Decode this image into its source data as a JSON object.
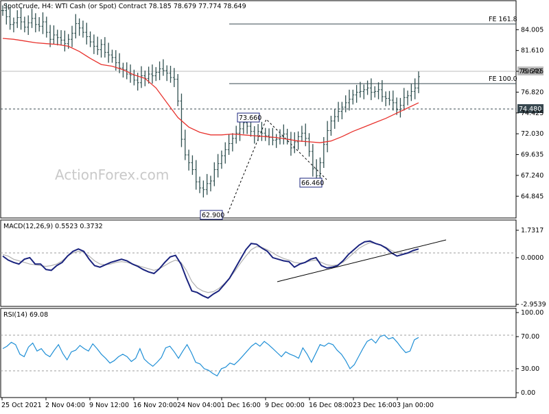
{
  "chart_data": [
    {
      "type": "bar",
      "panel": "price",
      "title": "SpotCrude, H4:  WTI Cash (or Spot) Contract  78.185 78.679 77.774 78.649",
      "watermark": "ActionForex.com",
      "ylim": [
        62.5,
        86.0
      ],
      "y_ticks": [
        "84.005",
        "81.610",
        "79.215",
        "76.820",
        "74.425",
        "72.030",
        "69.635",
        "67.240",
        "64.845"
      ],
      "x_ticks": [
        "25 Oct 2021",
        "2 Nov 04:00",
        "9 Nov 12:00",
        "16 Nov 20:00",
        "24 Nov 04:00",
        "1 Dec 16:00",
        "9 Dec 00:00",
        "16 Dec 08:00",
        "23 Dec 16:00",
        "3 Jan 00:00"
      ],
      "series": [
        {
          "values": [
            86.2,
            85.5,
            84.6,
            84.8,
            85.4,
            84.9,
            84.3,
            84.8,
            85.3,
            84.6,
            84.4,
            84.9,
            83.7,
            82.9,
            83.4,
            83.1,
            82.8,
            82.4,
            82.9,
            83.6,
            84.7,
            84.2,
            83.7,
            83.2,
            82.6,
            82.1,
            81.7,
            82.3,
            81.4,
            81.1,
            80.8,
            80.2,
            79.6,
            79.4,
            78.9,
            78.8,
            78.2,
            77.9,
            78.7,
            78.4,
            78.9,
            78.7,
            79.1,
            79.5,
            79.3,
            79.0,
            78.5,
            78.3,
            75.8,
            71.4,
            69.6,
            68.7,
            67.9,
            66.5,
            65.8,
            65.6,
            66.3,
            66.6,
            67.9,
            68.6,
            69.5,
            70.2,
            70.9,
            71.5,
            72.1,
            72.6,
            73.3,
            72.9,
            72.3,
            71.8,
            72.3,
            72.1,
            71.8,
            71.6,
            71.3,
            71.4,
            71.7,
            72.0,
            71.4,
            70.4,
            71.1,
            71.7,
            72.1,
            71.5,
            70.0,
            68.0,
            67.2,
            68.7,
            70.8,
            72.4,
            73.5,
            74.0,
            74.6,
            75.1,
            75.6,
            76.0,
            76.5,
            76.8,
            76.9,
            77.1,
            77.3,
            76.8,
            76.9,
            77.1,
            76.3,
            76.1,
            75.9,
            75.6,
            74.8,
            75.3,
            76.2,
            76.4,
            76.9,
            77.3,
            78.6
          ]
        },
        {
          "name": "MA",
          "values": [
            83.0,
            82.9,
            82.7,
            82.5,
            82.4,
            82.3,
            82.1,
            81.5,
            80.7,
            80.0,
            79.8,
            79.4,
            78.8,
            78.4,
            77.3,
            75.6,
            73.9,
            72.8,
            72.2,
            71.9,
            71.9,
            72.0,
            71.9,
            71.8,
            71.7,
            71.6,
            71.4,
            71.2,
            71.1,
            71.0,
            71.2,
            71.7,
            72.3,
            72.8,
            73.3,
            73.8,
            74.4,
            75.0,
            75.6
          ]
        }
      ],
      "annotations": {
        "levels": [
          {
            "label": "FE 161.8",
            "value": 84.1
          },
          {
            "label": "FE 100.0",
            "value": 77.2
          },
          {
            "label": "74.480",
            "value": 74.48
          },
          {
            "label": "78.649",
            "value": 78.649
          }
        ],
        "points": [
          {
            "label": "62.900",
            "value": 62.9
          },
          {
            "label": "73.660",
            "value": 73.66
          },
          {
            "label": "66.460",
            "value": 66.46
          }
        ]
      },
      "colors": {
        "candles": "#2f4f4f",
        "ma": "#e8322d",
        "level_lines": "#37474f",
        "current_price": "#9e9e9e"
      }
    },
    {
      "type": "line",
      "panel": "macd",
      "title": "MACD(12,26,9) 0.5523 0.3732",
      "ylim": [
        -2.95,
        1.73
      ],
      "y_ticks": [
        "1.7317",
        "0.0000",
        "-2.9539"
      ],
      "series": [
        {
          "values": [
            0.1,
            -0.15,
            -0.3,
            -0.4,
            -0.1,
            0.0,
            -0.4,
            -0.4,
            -0.75,
            -0.8,
            -0.5,
            -0.3,
            0.1,
            0.4,
            0.55,
            0.4,
            -0.1,
            -0.5,
            -0.6,
            -0.45,
            -0.3,
            -0.2,
            -0.1,
            -0.2,
            -0.4,
            -0.55,
            -0.75,
            -0.9,
            -1.0,
            -0.7,
            -0.3,
            0.05,
            0.15,
            -0.4,
            -1.3,
            -2.1,
            -2.2,
            -2.4,
            -2.55,
            -2.3,
            -2.1,
            -1.7,
            -1.3,
            -0.7,
            -0.1,
            0.5,
            0.9,
            0.85,
            0.6,
            0.4,
            0.0,
            -0.1,
            -0.2,
            -0.25,
            -0.6,
            -0.4,
            -0.3,
            -0.1,
            0.0,
            -0.5,
            -0.65,
            -0.6,
            -0.5,
            -0.2,
            0.2,
            0.5,
            0.8,
            1.0,
            1.05,
            0.9,
            0.8,
            0.6,
            0.3,
            0.1,
            0.2,
            0.3,
            0.45,
            0.55
          ]
        },
        {
          "values": [
            0.2,
            0.1,
            -0.1,
            -0.2,
            -0.3,
            -0.4,
            -0.45,
            -0.5,
            -0.55,
            -0.5,
            -0.4,
            -0.2,
            0.1,
            0.3,
            0.4,
            0.35,
            0.1,
            -0.2,
            -0.4,
            -0.45,
            -0.4,
            -0.3,
            -0.25,
            -0.3,
            -0.4,
            -0.5,
            -0.6,
            -0.7,
            -0.8,
            -0.7,
            -0.5,
            -0.3,
            -0.15,
            -0.3,
            -0.8,
            -1.5,
            -1.9,
            -2.1,
            -2.2,
            -2.15,
            -1.95,
            -1.65,
            -1.3,
            -0.85,
            -0.35,
            0.1,
            0.5,
            0.7,
            0.65,
            0.5,
            0.3,
            0.1,
            -0.05,
            -0.15,
            -0.3,
            -0.35,
            -0.3,
            -0.2,
            -0.15,
            -0.3,
            -0.45,
            -0.5,
            -0.45,
            -0.3,
            0.0,
            0.3,
            0.6,
            0.8,
            0.95,
            0.9,
            0.8,
            0.65,
            0.45,
            0.3,
            0.25,
            0.28,
            0.32,
            0.37
          ]
        }
      ],
      "colors": {
        "macd": "#1a237e",
        "signal": "#b0b0b0",
        "trendline": "#000000"
      }
    },
    {
      "type": "line",
      "panel": "rsi",
      "title": "RSI(14) 69.08",
      "ylim": [
        0,
        100
      ],
      "y_ticks": [
        "100.00",
        "70.00",
        "30.00",
        "0.00"
      ],
      "grid_levels": [
        70,
        30
      ],
      "series": [
        {
          "values": [
            55,
            58,
            63,
            60,
            48,
            45,
            57,
            62,
            52,
            55,
            48,
            45,
            53,
            60,
            49,
            41,
            51,
            53,
            59,
            55,
            52,
            61,
            55,
            48,
            43,
            37,
            40,
            45,
            48,
            45,
            39,
            43,
            55,
            42,
            37,
            33,
            38,
            44,
            56,
            58,
            51,
            43,
            52,
            60,
            50,
            38,
            36,
            30,
            28,
            24,
            21,
            30,
            32,
            37,
            35,
            40,
            46,
            52,
            58,
            62,
            58,
            64,
            60,
            55,
            50,
            45,
            51,
            48,
            46,
            43,
            56,
            48,
            38,
            49,
            60,
            58,
            62,
            60,
            53,
            48,
            40,
            30,
            35,
            45,
            55,
            64,
            67,
            62,
            70,
            72,
            67,
            69,
            63,
            56,
            50,
            52,
            66,
            69
          ]
        }
      ],
      "colors": {
        "rsi": "#1f8fd6",
        "grid": "#9e9e9e"
      }
    }
  ]
}
